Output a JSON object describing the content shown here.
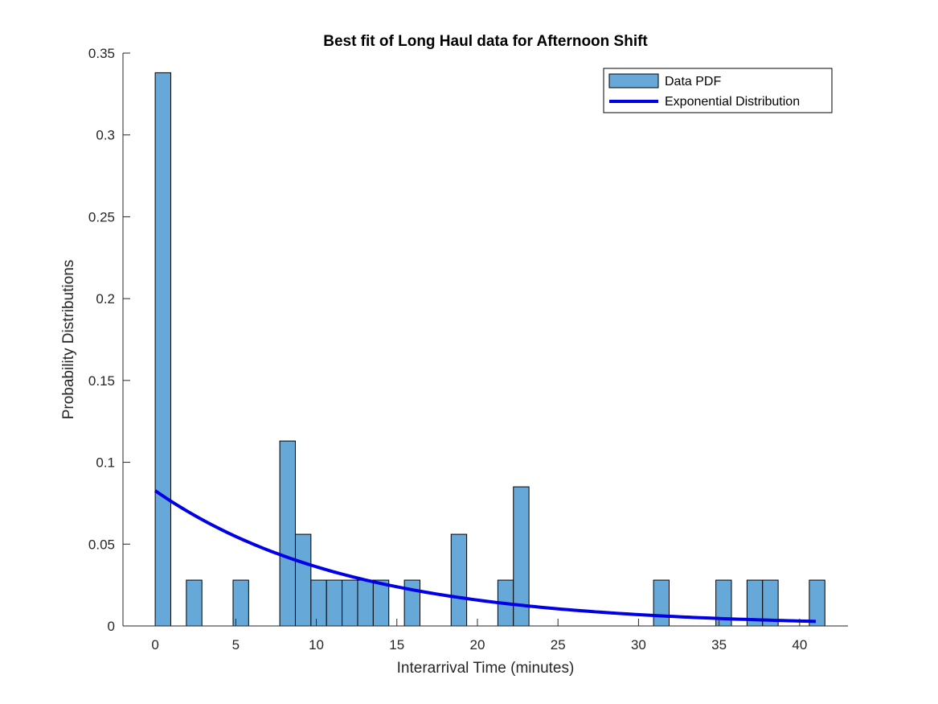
{
  "chart_data": {
    "type": "bar",
    "title": "Best fit of Long Haul data for Afternoon Shift",
    "xlabel": "Interarrival Time (minutes)",
    "ylabel": "Probability Distributions",
    "xlim": [
      -2,
      43
    ],
    "ylim": [
      0,
      0.35
    ],
    "xticks": [
      0,
      5,
      10,
      15,
      20,
      25,
      30,
      35,
      40
    ],
    "yticks": [
      0,
      0.05,
      0.1,
      0.15,
      0.2,
      0.25,
      0.3,
      0.35
    ],
    "grid": false,
    "legend_position": "top-right",
    "histogram": {
      "name": "Data PDF",
      "color": "#66A8D8",
      "edge_color": "#000000",
      "bin_width": 0.9667,
      "bin_starts": [
        0.0,
        1.933,
        4.833,
        7.733,
        8.7,
        9.667,
        10.633,
        11.6,
        12.567,
        13.533,
        15.467,
        18.367,
        21.267,
        22.233,
        30.933,
        34.8,
        36.733,
        37.7,
        40.6
      ],
      "values": [
        0.338,
        0.028,
        0.028,
        0.113,
        0.056,
        0.028,
        0.028,
        0.028,
        0.028,
        0.028,
        0.028,
        0.056,
        0.028,
        0.085,
        0.028,
        0.028,
        0.028,
        0.028,
        0.028
      ]
    },
    "series": [
      {
        "name": "Exponential Distribution",
        "type": "line",
        "color": "#0000E6",
        "function": "exponential_pdf",
        "mean": 12.1,
        "x_range": [
          0,
          41
        ]
      }
    ]
  }
}
